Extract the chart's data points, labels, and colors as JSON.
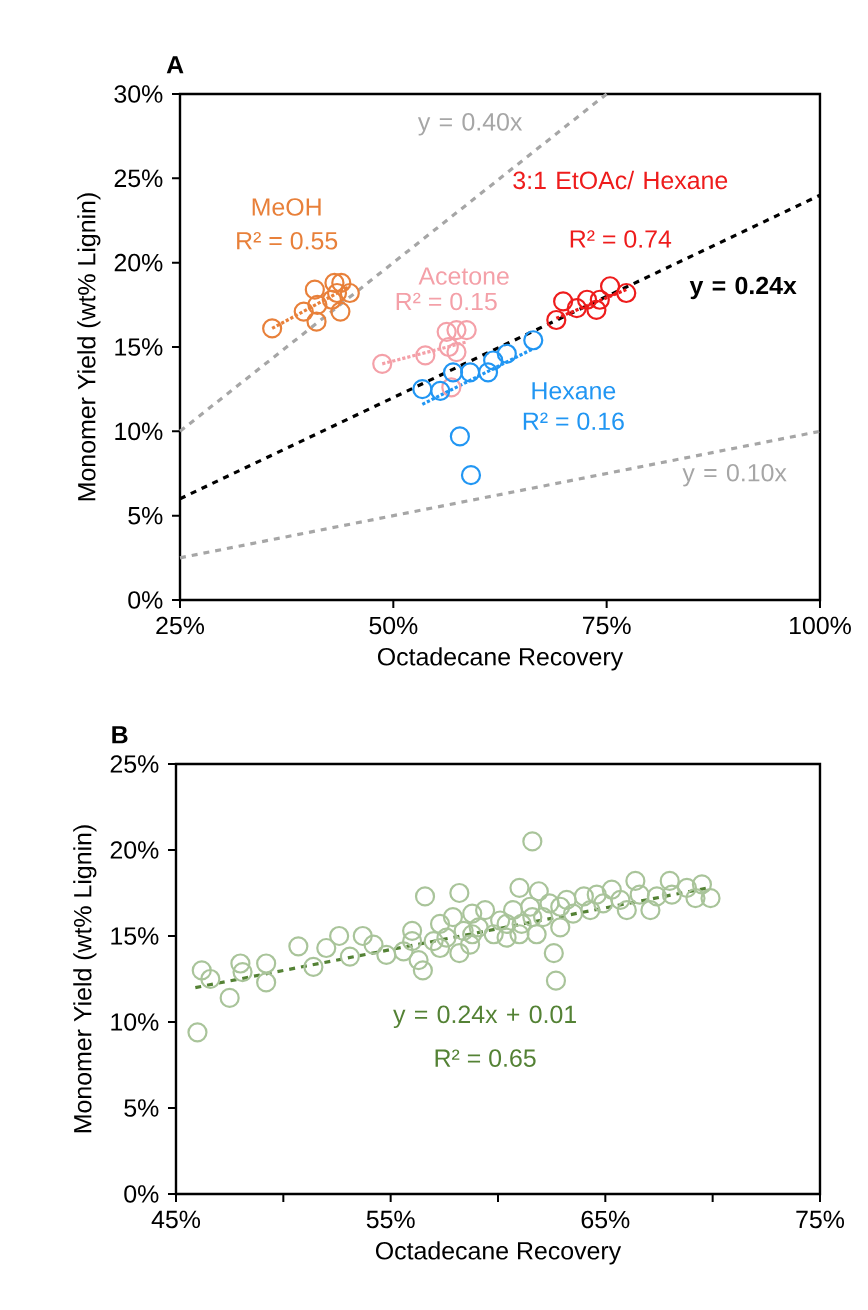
{
  "chart_data": [
    {
      "type": "scatter",
      "title": "A",
      "xlabel": "Octadecane Recovery",
      "ylabel": "Monomer Yield (wt% Lignin)",
      "xlim": [
        25,
        100
      ],
      "ylim": [
        0,
        30
      ],
      "xticks": [
        {
          "value": 25,
          "label": "25%"
        },
        {
          "value": 50,
          "label": "50%"
        },
        {
          "value": 75,
          "label": "75%"
        },
        {
          "value": 100,
          "label": "100%"
        }
      ],
      "yticks": [
        {
          "value": 0,
          "label": "0%"
        },
        {
          "value": 5,
          "label": "5%"
        },
        {
          "value": 10,
          "label": "10%"
        },
        {
          "value": 15,
          "label": "15%"
        },
        {
          "value": 20,
          "label": "20%"
        },
        {
          "value": 25,
          "label": "25%"
        },
        {
          "value": 30,
          "label": "30%"
        }
      ],
      "grid": false,
      "legend": false,
      "annotations": [
        "R² = 0.55",
        "R² = 0.15",
        "R² = 0.74",
        "R² = 0.16"
      ],
      "series": [
        {
          "name": "y = 0.40x",
          "type": "line",
          "color": "#a6a6a6",
          "line_style": "dashed",
          "marker": "none",
          "x": [
            25,
            75
          ],
          "values": [
            10,
            30
          ]
        },
        {
          "name": "y = 0.10x",
          "type": "line",
          "color": "#a6a6a6",
          "line_style": "dashed",
          "marker": "none",
          "x": [
            25,
            100
          ],
          "values": [
            2.5,
            10
          ]
        },
        {
          "name": "y = 0.24x",
          "type": "line",
          "color": "#000000",
          "line_style": "dashed",
          "marker": "none",
          "x": [
            25,
            100
          ],
          "values": [
            6,
            24
          ]
        },
        {
          "name": "MeOH",
          "color": "#e8803a",
          "marker": "circle",
          "x": [
            35.8,
            39.5,
            40.8,
            41.1,
            41.0,
            43.1,
            43.4,
            43.8,
            43.9,
            44.9,
            42.8
          ],
          "values": [
            16.1,
            17.1,
            18.4,
            17.5,
            16.5,
            18.8,
            18.2,
            17.1,
            18.8,
            18.2,
            17.8
          ]
        },
        {
          "type": "line",
          "color": "#e8803a",
          "line_style": "dotted",
          "marker": "none",
          "x": [
            35.8,
            44.9
          ],
          "values": [
            16.1,
            18.6
          ]
        },
        {
          "name": "Acetone",
          "color": "#f4a0a8",
          "marker": "circle",
          "x": [
            48.7,
            53.75,
            56.25,
            56.5,
            57.4,
            58.6,
            56.8,
            57.4
          ],
          "values": [
            14.0,
            14.5,
            15.9,
            15.0,
            16.0,
            16.0,
            12.6,
            14.7
          ]
        },
        {
          "type": "line",
          "color": "#f4a0a8",
          "line_style": "dotted",
          "marker": "none",
          "x": [
            48.7,
            58.6
          ],
          "values": [
            14.0,
            15.3
          ]
        },
        {
          "name": "3:1 EtOAc/ Hexane",
          "color": "#ee1c1c",
          "marker": "circle",
          "x": [
            69.1,
            69.9,
            71.5,
            72.7,
            73.8,
            74.2,
            75.4,
            77.3
          ],
          "values": [
            16.6,
            17.7,
            17.3,
            17.8,
            17.2,
            17.8,
            18.6,
            18.2
          ]
        },
        {
          "type": "line",
          "color": "#ee1c1c",
          "line_style": "dotted",
          "marker": "none",
          "x": [
            69.1,
            77.3
          ],
          "values": [
            16.7,
            18.4
          ]
        },
        {
          "name": "Hexane",
          "color": "#2196f3",
          "marker": "circle",
          "x": [
            53.4,
            55.5,
            57.0,
            59.0,
            61.1,
            61.7,
            63.3,
            66.4,
            57.8,
            59.1
          ],
          "values": [
            12.5,
            12.4,
            13.5,
            13.5,
            13.5,
            14.2,
            14.6,
            15.4,
            9.7,
            7.4
          ]
        },
        {
          "type": "line",
          "color": "#2196f3",
          "line_style": "dotted",
          "marker": "none",
          "x": [
            53.4,
            66.4
          ],
          "values": [
            11.6,
            14.9
          ]
        }
      ]
    },
    {
      "type": "scatter",
      "title": "B",
      "xlabel": "Octadecane Recovery",
      "ylabel": "Monomer Yield (wt% Lignin)",
      "xlim": [
        45,
        75
      ],
      "ylim": [
        0,
        25
      ],
      "xticks": [
        {
          "value": 45,
          "label": "45%"
        },
        {
          "value": 50,
          "label": null
        },
        {
          "value": 55,
          "label": "55%"
        },
        {
          "value": 60,
          "label": null
        },
        {
          "value": 65,
          "label": "65%"
        },
        {
          "value": 70,
          "label": null
        },
        {
          "value": 75,
          "label": "75%"
        }
      ],
      "yticks": [
        {
          "value": 0,
          "label": "0%"
        },
        {
          "value": 5,
          "label": "5%"
        },
        {
          "value": 10,
          "label": "10%"
        },
        {
          "value": 15,
          "label": "15%"
        },
        {
          "value": 20,
          "label": "20%"
        },
        {
          "value": 25,
          "label": "25%"
        }
      ],
      "grid": false,
      "legend": false,
      "annotations": [
        "R² = 0.65"
      ],
      "series": [
        {
          "color": "#a9c49a",
          "marker": "circle",
          "x": [
            46.0,
            46.2,
            46.6,
            47.5,
            48.0,
            48.1,
            49.2,
            49.2,
            50.7,
            51.4,
            52.0,
            52.6,
            53.1,
            53.7,
            54.2,
            54.8,
            55.6,
            56.0,
            56.3,
            56.5,
            56.6,
            57.0,
            57.3,
            57.6,
            57.9,
            58.2,
            58.4,
            58.7,
            58.8,
            59.1,
            59.4,
            59.8,
            60.1,
            60.4,
            60.7,
            61.0,
            61.1,
            61.5,
            61.6,
            61.8,
            61.9,
            62.1,
            62.4,
            62.6,
            62.7,
            62.9,
            63.2,
            63.5,
            64.0,
            64.3,
            64.6,
            64.9,
            65.3,
            65.7,
            66.0,
            66.4,
            66.6,
            67.1,
            67.4,
            68.0,
            68.1,
            68.8,
            69.2,
            69.5,
            69.9,
            56.0,
            57.3,
            58.8,
            60.4,
            61.6,
            62.9,
            61.0,
            58.2
          ],
          "values": [
            9.4,
            13.0,
            12.5,
            11.4,
            13.4,
            12.9,
            13.4,
            12.3,
            14.4,
            13.2,
            14.3,
            15.0,
            13.8,
            15.0,
            14.5,
            13.9,
            14.1,
            15.3,
            13.6,
            13.0,
            17.3,
            14.7,
            15.7,
            14.9,
            16.1,
            17.5,
            15.3,
            14.5,
            16.3,
            15.5,
            16.5,
            15.1,
            15.9,
            14.9,
            16.5,
            17.8,
            15.7,
            16.7,
            20.5,
            15.1,
            17.6,
            16.1,
            16.9,
            14.0,
            12.4,
            15.5,
            17.1,
            16.3,
            17.3,
            16.5,
            17.4,
            16.9,
            17.7,
            17.1,
            16.5,
            18.2,
            17.4,
            16.5,
            17.3,
            18.2,
            17.4,
            17.8,
            17.2,
            18.0,
            17.2,
            14.7,
            14.3,
            15.1,
            15.7,
            16.1,
            16.7,
            15.1,
            14.0
          ]
        },
        {
          "name": "y = 0.24x + 0.01",
          "type": "line",
          "color": "#548235",
          "line_style": "dashed",
          "marker": "none",
          "x": [
            45.9,
            69.8
          ],
          "values": [
            12.0,
            17.8
          ]
        }
      ]
    }
  ]
}
